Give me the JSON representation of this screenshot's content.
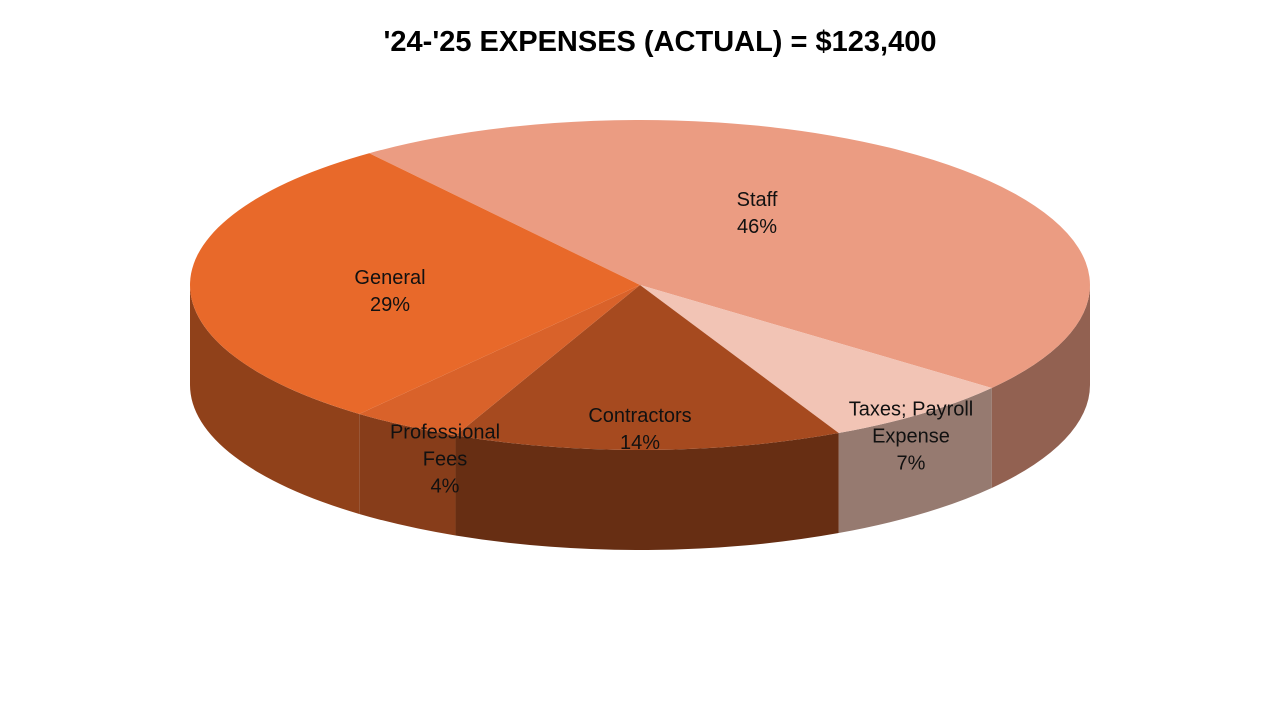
{
  "chart_data": {
    "type": "pie3d",
    "title": "'24-'25 EXPENSES (ACTUAL) = $123,400",
    "categories": [
      "Staff",
      "Taxes; Payroll Expense",
      "Contractors",
      "Professional Fees",
      "General"
    ],
    "values": [
      46,
      7,
      14,
      4,
      29
    ],
    "value_labels": [
      "46%",
      "7%",
      "14%",
      "4%",
      "29%"
    ],
    "colors": [
      "#eb9c82",
      "#f2c4b5",
      "#a64a1f",
      "#d9622a",
      "#e8692a"
    ]
  }
}
